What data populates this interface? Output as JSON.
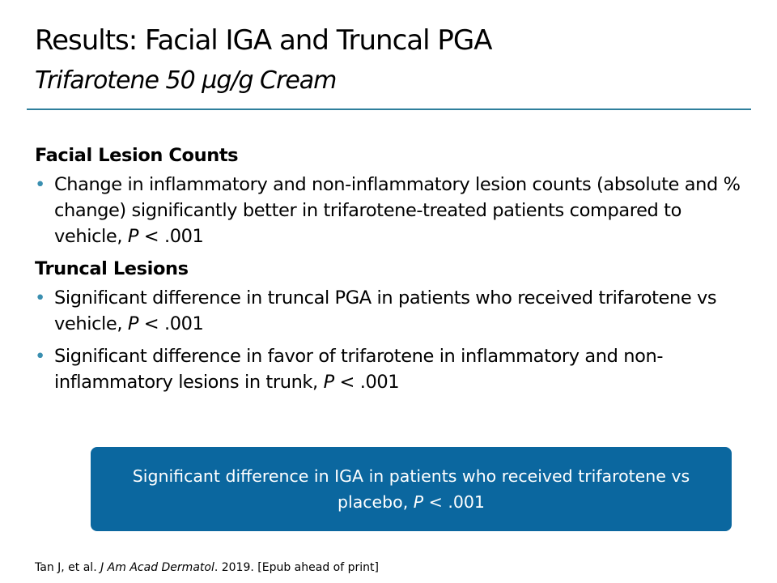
{
  "title": "Results: Facial IGA and Truncal PGA",
  "subtitle": "Trifarotene 50 µg/g Cream",
  "sections": [
    {
      "heading": "Facial Lesion Counts",
      "bullets": [
        [
          {
            "text": "Change in inflammatory and non-inflammatory lesion counts (absolute and % change) significantly better in trifarotene-treated patients compared to vehicle, "
          },
          {
            "text": "P",
            "italic": true
          },
          {
            "text": " < .001"
          }
        ]
      ]
    },
    {
      "heading": "Truncal Lesions",
      "bullets": [
        [
          {
            "text": "Significant difference in truncal PGA in patients who received trifarotene vs vehicle, "
          },
          {
            "text": "P",
            "italic": true
          },
          {
            "text": " < .001"
          }
        ],
        [
          {
            "text": "Significant difference in favor of trifarotene in inflammatory and non-inflammatory lesions in trunk, "
          },
          {
            "text": "P",
            "italic": true
          },
          {
            "text": " < .001"
          }
        ]
      ]
    }
  ],
  "callout": [
    {
      "text": "Significant difference in IGA in patients who received trifarotene vs placebo, "
    },
    {
      "text": "P",
      "italic": true
    },
    {
      "text": " < .001"
    }
  ],
  "reference": [
    {
      "text": "Tan J, et al. "
    },
    {
      "text": "J Am Acad Dermatol",
      "italic": true
    },
    {
      "text": ". 2019. [Epub ahead of print]"
    }
  ]
}
